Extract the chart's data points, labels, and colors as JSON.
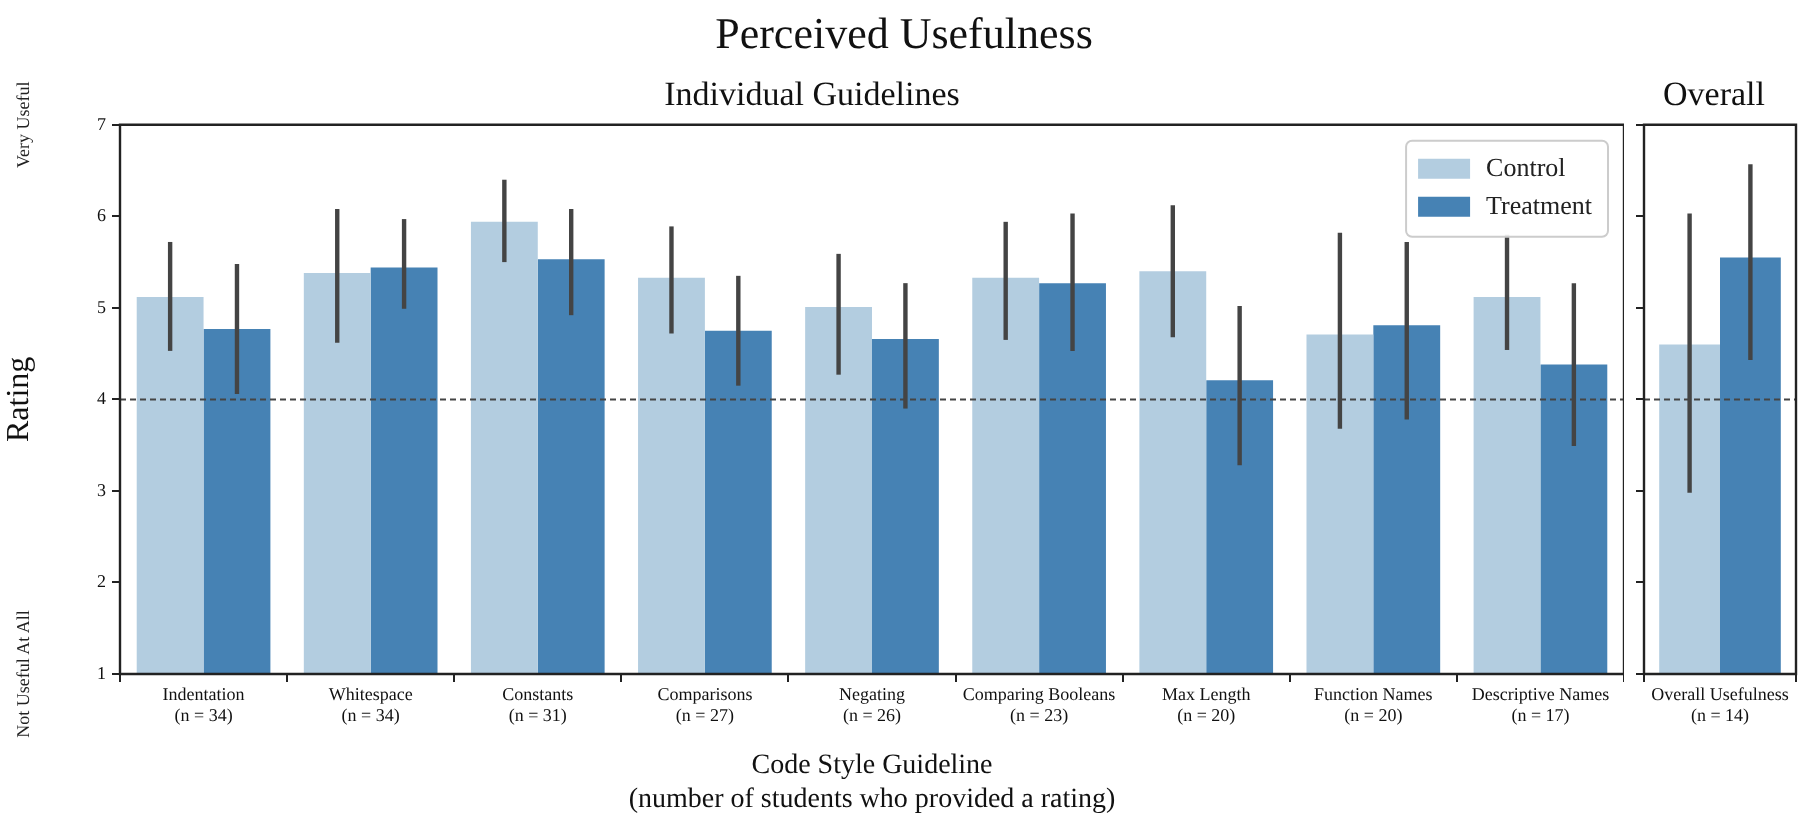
{
  "chart_data": [
    {
      "type": "bar",
      "title": "Individual Guidelines",
      "annotations": [
        "Perceived Usefulness",
        "Very Useful",
        "Not Useful At All"
      ],
      "xlabel": "Code Style Guideline\n(number of students who provided a rating)",
      "ylabel": "Rating",
      "categories": [
        "Indentation\n(n = 34)",
        "Whitespace\n(n = 34)",
        "Constants\n(n = 31)",
        "Comparisons\n(n = 27)",
        "Negating\n(n = 26)",
        "Comparing Booleans\n(n = 23)",
        "Max Length\n(n = 20)",
        "Function Names\n(n = 20)",
        "Descriptive Names\n(n = 17)"
      ],
      "series": [
        {
          "name": "Control",
          "color": "#b3cde0",
          "values": [
            5.12,
            5.38,
            5.94,
            5.33,
            5.01,
            5.33,
            5.4,
            4.71,
            5.12
          ],
          "errors": [
            [
              4.53,
              5.72
            ],
            [
              4.62,
              6.08
            ],
            [
              5.5,
              6.4
            ],
            [
              4.72,
              5.89
            ],
            [
              4.27,
              5.59
            ],
            [
              4.65,
              5.94
            ],
            [
              4.68,
              6.12
            ],
            [
              3.68,
              5.82
            ],
            [
              4.54,
              5.8
            ]
          ]
        },
        {
          "name": "Treatment",
          "color": "#4682b4",
          "values": [
            4.77,
            5.44,
            5.53,
            4.75,
            4.66,
            5.27,
            4.21,
            4.81,
            4.38
          ],
          "errors": [
            [
              4.06,
              5.48
            ],
            [
              4.99,
              5.97
            ],
            [
              4.92,
              6.08
            ],
            [
              4.15,
              5.35
            ],
            [
              3.9,
              5.27
            ],
            [
              4.53,
              6.03
            ],
            [
              3.28,
              5.02
            ],
            [
              3.78,
              5.72
            ],
            [
              3.49,
              5.27
            ]
          ]
        }
      ],
      "ylim": [
        1,
        7
      ],
      "yticks": [
        1,
        2,
        3,
        4,
        5,
        6,
        7
      ],
      "ref_lines": [
        {
          "axis": "y",
          "value": 4,
          "color": "#444444",
          "line_style": "dashed"
        }
      ],
      "legend": "top right",
      "grid": false
    },
    {
      "type": "bar",
      "title": "Overall",
      "categories": [
        "Overall Usefulness\n(n = 14)"
      ],
      "series": [
        {
          "color": "#b3cde0",
          "values": [
            4.6
          ],
          "errors": [
            [
              2.98,
              6.03
            ]
          ]
        },
        {
          "color": "#4682b4",
          "values": [
            5.55
          ],
          "errors": [
            [
              4.43,
              6.57
            ]
          ]
        }
      ],
      "ylim": [
        1,
        7
      ],
      "yticks": [
        1,
        2,
        3,
        4,
        5,
        6,
        7
      ],
      "ref_lines": [
        {
          "axis": "y",
          "value": 4,
          "color": "#444444",
          "line_style": "dashed"
        }
      ],
      "tick_labels": "x",
      "grid": false
    }
  ]
}
